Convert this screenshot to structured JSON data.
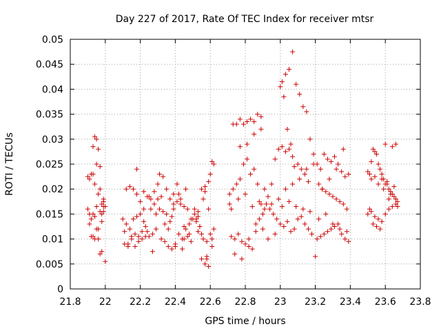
{
  "chart_data": {
    "type": "scatter",
    "title": "Day 227 of 2017, Rate Of TEC Index for receiver mtsr",
    "xlabel": "GPS time / hours",
    "ylabel": "ROTI / TECUs",
    "xlim": [
      21.8,
      23.8
    ],
    "ylim": [
      0,
      0.05
    ],
    "xticks": [
      "21.8",
      "22",
      "22.2",
      "22.4",
      "22.6",
      "22.8",
      "23",
      "23.2",
      "23.4",
      "23.6",
      "23.8"
    ],
    "yticks": [
      "0",
      "0.005",
      "0.01",
      "0.015",
      "0.02",
      "0.025",
      "0.03",
      "0.035",
      "0.04",
      "0.045",
      "0.05"
    ],
    "grid": true,
    "marker": "+",
    "color": "#cc0000",
    "series": [
      {
        "x": [
          21.9,
          21.91,
          21.92,
          21.93,
          21.94,
          21.95,
          21.96,
          21.97,
          21.98,
          21.99,
          22.0,
          21.91,
          21.92,
          21.93,
          21.94,
          21.95,
          21.96,
          21.97,
          21.98,
          21.99,
          21.9,
          21.92,
          21.94,
          21.96,
          21.98,
          22.0,
          21.93,
          21.95,
          21.97,
          21.99,
          21.91,
          21.93,
          21.95,
          21.97,
          21.99,
          21.94,
          21.96,
          21.98,
          22.1,
          22.12,
          22.14,
          22.16,
          22.18,
          22.2,
          22.22,
          22.24,
          22.26,
          22.28,
          22.3,
          22.11,
          22.13,
          22.15,
          22.17,
          22.19,
          22.21,
          22.23,
          22.25,
          22.27,
          22.29,
          22.12,
          22.14,
          22.16,
          22.18,
          22.2,
          22.22,
          22.24,
          22.26,
          22.28,
          22.3,
          22.11,
          22.15,
          22.19,
          22.23,
          22.27,
          22.17,
          22.21,
          22.25,
          22.29,
          22.13,
          22.18,
          22.22,
          22.31,
          22.33,
          22.35,
          22.37,
          22.39,
          22.41,
          22.43,
          22.45,
          22.47,
          22.49,
          22.32,
          22.34,
          22.36,
          22.38,
          22.4,
          22.42,
          22.44,
          22.46,
          22.48,
          22.5,
          22.31,
          22.33,
          22.35,
          22.37,
          22.39,
          22.41,
          22.43,
          22.45,
          22.47,
          22.49,
          22.34,
          22.38,
          22.42,
          22.46,
          22.36,
          22.4,
          22.44,
          22.48,
          22.32,
          22.39,
          22.45,
          22.51,
          22.53,
          22.55,
          22.57,
          22.59,
          22.61,
          22.52,
          22.54,
          22.56,
          22.58,
          22.6,
          22.62,
          22.51,
          22.53,
          22.55,
          22.57,
          22.59,
          22.61,
          22.52,
          22.55,
          22.58,
          22.61,
          22.54,
          22.56,
          22.6,
          22.57,
          22.59,
          22.62,
          22.53,
          22.58,
          22.71,
          22.73,
          22.75,
          22.77,
          22.79,
          22.81,
          22.83,
          22.85,
          22.87,
          22.89,
          22.72,
          22.74,
          22.76,
          22.78,
          22.8,
          22.82,
          22.84,
          22.86,
          22.88,
          22.9,
          22.71,
          22.73,
          22.75,
          22.77,
          22.79,
          22.81,
          22.83,
          22.85,
          22.87,
          22.89,
          22.72,
          22.76,
          22.8,
          22.84,
          22.88,
          22.74,
          22.78,
          22.82,
          22.86,
          22.9,
          22.77,
          22.81,
          22.85,
          22.89,
          22.91,
          22.93,
          22.95,
          22.97,
          22.99,
          23.01,
          23.03,
          23.05,
          23.07,
          23.09,
          23.11,
          23.13,
          23.15,
          23.17,
          23.19,
          22.92,
          22.94,
          22.96,
          22.98,
          23.0,
          23.02,
          23.04,
          23.06,
          23.08,
          23.1,
          23.12,
          23.14,
          23.16,
          23.18,
          23.2,
          22.91,
          22.95,
          22.99,
          23.03,
          23.07,
          23.11,
          23.15,
          23.19,
          22.93,
          22.97,
          23.01,
          23.05,
          23.09,
          23.13,
          23.17,
          23.0,
          23.02,
          23.04,
          23.06,
          23.08,
          23.1,
          23.12,
          23.14,
          23.16,
          23.01,
          23.03,
          23.05,
          23.07,
          23.21,
          23.23,
          23.25,
          23.27,
          23.29,
          23.31,
          23.33,
          23.35,
          23.37,
          23.39,
          23.22,
          23.24,
          23.26,
          23.28,
          23.3,
          23.32,
          23.34,
          23.36,
          23.38,
          23.21,
          23.23,
          23.25,
          23.27,
          23.29,
          23.31,
          23.33,
          23.35,
          23.37,
          23.39,
          23.22,
          23.26,
          23.3,
          23.34,
          23.38,
          23.24,
          23.28,
          23.32,
          23.36,
          23.5,
          23.51,
          23.52,
          23.53,
          23.54,
          23.55,
          23.56,
          23.57,
          23.58,
          23.59,
          23.6,
          23.61,
          23.62,
          23.63,
          23.64,
          23.65,
          23.66,
          23.67,
          23.5,
          23.52,
          23.54,
          23.56,
          23.58,
          23.6,
          23.62,
          23.64,
          23.66,
          23.51,
          23.53,
          23.55,
          23.57,
          23.59,
          23.61,
          23.63,
          23.65,
          23.67,
          23.52,
          23.56,
          23.6,
          23.64,
          23.54,
          23.58,
          23.62,
          23.66
        ],
        "y": [
          0.0225,
          0.022,
          0.023,
          0.0285,
          0.0305,
          0.03,
          0.028,
          0.0245,
          0.017,
          0.0175,
          0.0165,
          0.015,
          0.014,
          0.015,
          0.0145,
          0.0165,
          0.012,
          0.0155,
          0.0135,
          0.0155,
          0.016,
          0.0105,
          0.01,
          0.01,
          0.0075,
          0.0055,
          0.023,
          0.025,
          0.02,
          0.018,
          0.013,
          0.0105,
          0.012,
          0.007,
          0.0165,
          0.021,
          0.019,
          0.015,
          0.014,
          0.02,
          0.0205,
          0.02,
          0.019,
          0.0175,
          0.016,
          0.0185,
          0.018,
          0.0195,
          0.021,
          0.009,
          0.0085,
          0.01,
          0.011,
          0.0105,
          0.0115,
          0.0125,
          0.0105,
          0.011,
          0.012,
          0.013,
          0.012,
          0.014,
          0.0145,
          0.015,
          0.0135,
          0.0115,
          0.016,
          0.017,
          0.018,
          0.0115,
          0.0105,
          0.0095,
          0.0105,
          0.0075,
          0.0085,
          0.01,
          0.0185,
          0.015,
          0.009,
          0.024,
          0.0195,
          0.023,
          0.0225,
          0.02,
          0.018,
          0.019,
          0.021,
          0.017,
          0.0165,
          0.016,
          0.014,
          0.01,
          0.0095,
          0.0085,
          0.008,
          0.009,
          0.011,
          0.01,
          0.012,
          0.013,
          0.014,
          0.016,
          0.0155,
          0.015,
          0.0135,
          0.017,
          0.0175,
          0.018,
          0.0125,
          0.0105,
          0.0095,
          0.013,
          0.0145,
          0.019,
          0.02,
          0.012,
          0.0085,
          0.008,
          0.011,
          0.0185,
          0.016,
          0.01,
          0.015,
          0.0145,
          0.02,
          0.0195,
          0.0215,
          0.0255,
          0.0135,
          0.0125,
          0.01,
          0.0095,
          0.011,
          0.012,
          0.016,
          0.0155,
          0.006,
          0.005,
          0.0045,
          0.0085,
          0.014,
          0.011,
          0.0065,
          0.01,
          0.0125,
          0.018,
          0.023,
          0.0205,
          0.016,
          0.025,
          0.0115,
          0.006,
          0.019,
          0.033,
          0.033,
          0.034,
          0.033,
          0.0335,
          0.034,
          0.0335,
          0.035,
          0.0345,
          0.0105,
          0.01,
          0.011,
          0.0095,
          0.009,
          0.0085,
          0.008,
          0.013,
          0.014,
          0.015,
          0.017,
          0.02,
          0.021,
          0.022,
          0.025,
          0.026,
          0.023,
          0.024,
          0.021,
          0.017,
          0.016,
          0.018,
          0.019,
          0.0165,
          0.0175,
          0.007,
          0.006,
          0.01,
          0.0115,
          0.012,
          0.0285,
          0.029,
          0.031,
          0.032,
          0.02,
          0.0185,
          0.021,
          0.026,
          0.028,
          0.0415,
          0.043,
          0.044,
          0.0475,
          0.041,
          0.039,
          0.0365,
          0.0355,
          0.03,
          0.027,
          0.017,
          0.016,
          0.015,
          0.014,
          0.013,
          0.0125,
          0.0135,
          0.0115,
          0.012,
          0.014,
          0.0145,
          0.013,
          0.012,
          0.011,
          0.0065,
          0.016,
          0.017,
          0.018,
          0.02,
          0.021,
          0.022,
          0.024,
          0.025,
          0.01,
          0.011,
          0.0165,
          0.0175,
          0.0165,
          0.016,
          0.0155,
          0.0405,
          0.0385,
          0.032,
          0.029,
          0.0245,
          0.025,
          0.024,
          0.023,
          0.0215,
          0.0285,
          0.0275,
          0.028,
          0.0265,
          0.025,
          0.024,
          0.027,
          0.026,
          0.0255,
          0.0265,
          0.025,
          0.0235,
          0.0225,
          0.023,
          0.021,
          0.02,
          0.0195,
          0.019,
          0.0185,
          0.018,
          0.0175,
          0.017,
          0.016,
          0.01,
          0.0105,
          0.011,
          0.0115,
          0.012,
          0.0125,
          0.013,
          0.011,
          0.01,
          0.0095,
          0.014,
          0.015,
          0.013,
          0.012,
          0.0115,
          0.02,
          0.022,
          0.024,
          0.028,
          0.0235,
          0.023,
          0.0255,
          0.028,
          0.0275,
          0.027,
          0.025,
          0.024,
          0.023,
          0.022,
          0.021,
          0.0215,
          0.02,
          0.0195,
          0.019,
          0.0185,
          0.018,
          0.0175,
          0.015,
          0.0155,
          0.0145,
          0.014,
          0.0135,
          0.015,
          0.016,
          0.0165,
          0.017,
          0.016,
          0.013,
          0.0125,
          0.012,
          0.02,
          0.021,
          0.019,
          0.0205,
          0.0165,
          0.022,
          0.021,
          0.029,
          0.0285,
          0.0225,
          0.022,
          0.018,
          0.029
        ]
      }
    ]
  }
}
